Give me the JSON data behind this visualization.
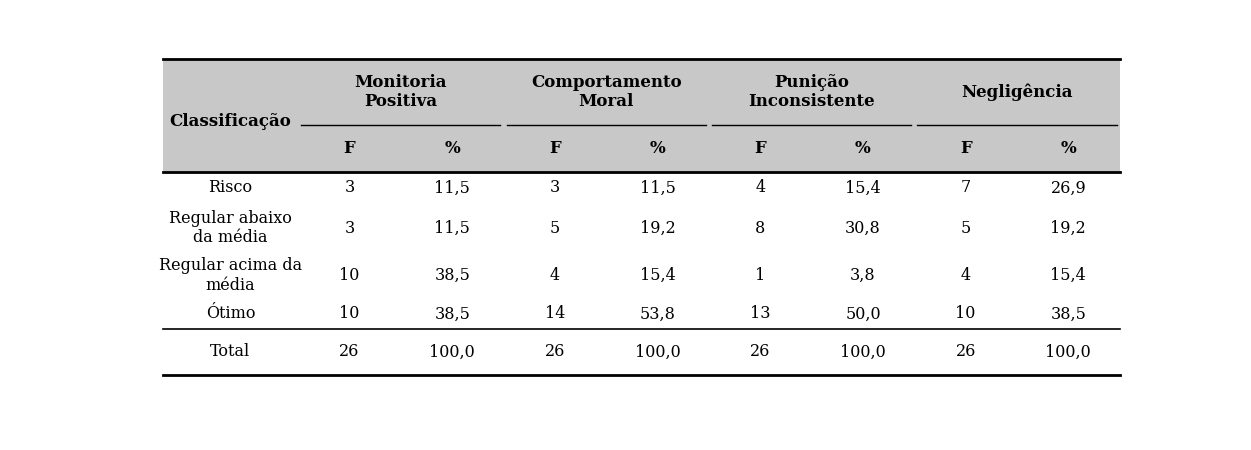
{
  "header_bg": "#c8c8c8",
  "col_groups": [
    {
      "label": "Monitoria\nPositiva",
      "sub": [
        "F",
        "%"
      ]
    },
    {
      "label": "Comportamento\nMoral",
      "sub": [
        "F",
        "%"
      ]
    },
    {
      "label": "Punição\nInconsistente",
      "sub": [
        "F",
        "%"
      ]
    },
    {
      "label": "Negligência",
      "sub": [
        "F",
        "%"
      ]
    }
  ],
  "row_label_col": "Classificação",
  "rows": [
    {
      "label": "Risco",
      "values": [
        "3",
        "11,5",
        "3",
        "11,5",
        "4",
        "15,4",
        "7",
        "26,9"
      ]
    },
    {
      "label": "Regular abaixo\nda média",
      "values": [
        "3",
        "11,5",
        "5",
        "19,2",
        "8",
        "30,8",
        "5",
        "19,2"
      ]
    },
    {
      "label": "Regular acima da\nmédia",
      "values": [
        "10",
        "38,5",
        "4",
        "15,4",
        "1",
        "3,8",
        "4",
        "15,4"
      ]
    },
    {
      "label": "Ótimo",
      "values": [
        "10",
        "38,5",
        "14",
        "53,8",
        "13",
        "50,0",
        "10",
        "38,5"
      ]
    }
  ],
  "total_row": {
    "label": "Total",
    "values": [
      "26",
      "100,0",
      "26",
      "100,0",
      "26",
      "100,0",
      "26",
      "100,0"
    ]
  },
  "font_size": 11.5,
  "header_font_size": 12
}
